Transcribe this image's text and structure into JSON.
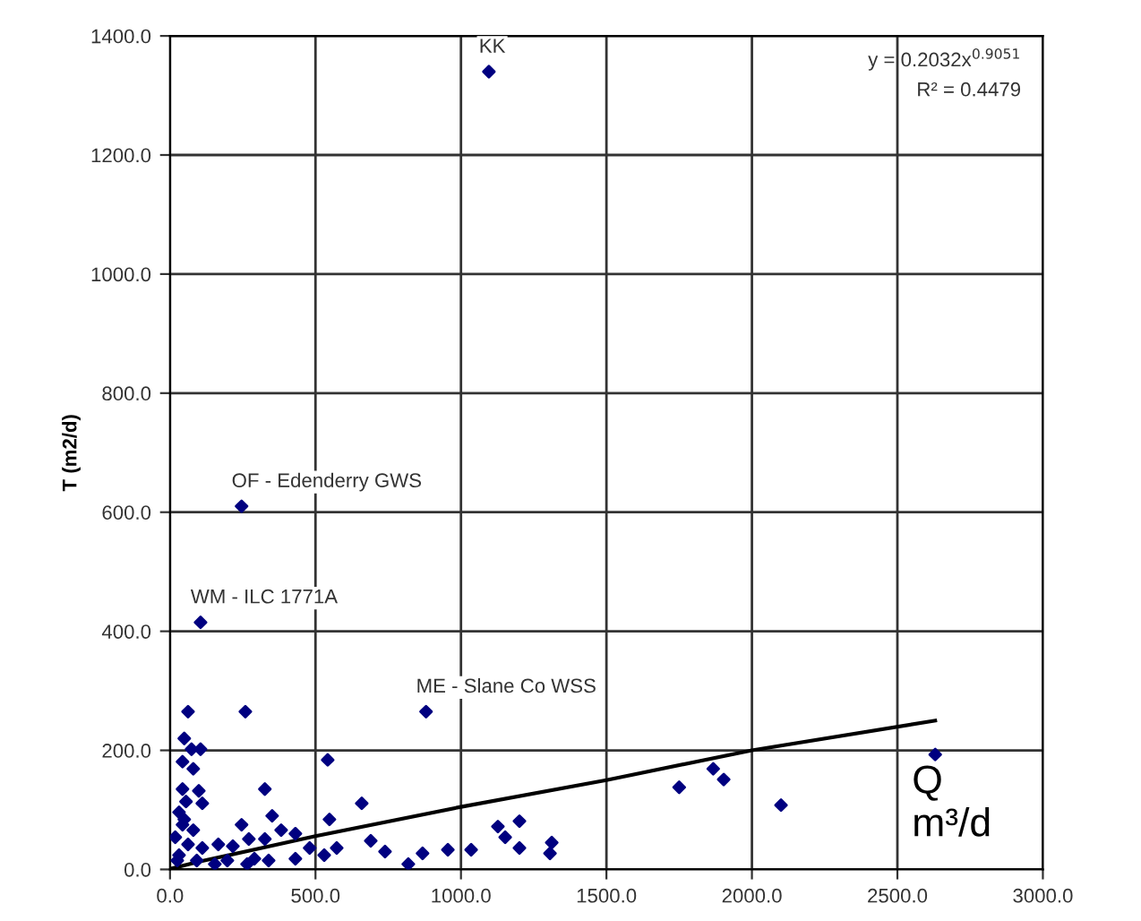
{
  "chart_data": {
    "type": "scatter",
    "xlabel": "Q\nm³/d",
    "ylabel": "T (m2/d)",
    "xlim": [
      0,
      3000
    ],
    "ylim": [
      0,
      1400
    ],
    "xticks": [
      {
        "value": 0,
        "label": "0.0"
      },
      {
        "value": 500,
        "label": "500.0"
      },
      {
        "value": 1000,
        "label": "1000.0"
      },
      {
        "value": 1500,
        "label": "1500.0"
      },
      {
        "value": 2000,
        "label": "2000.0"
      },
      {
        "value": 2500,
        "label": "2500.0"
      },
      {
        "value": 3000,
        "label": "3000.0"
      }
    ],
    "yticks": [
      {
        "value": 0,
        "label": "0.0"
      },
      {
        "value": 200,
        "label": "200.0"
      },
      {
        "value": 400,
        "label": "400.0"
      },
      {
        "value": 600,
        "label": "600.0"
      },
      {
        "value": 800,
        "label": "800.0"
      },
      {
        "value": 1000,
        "label": "1000.0"
      },
      {
        "value": 1200,
        "label": "1200.0"
      },
      {
        "value": 1400,
        "label": "1400.0"
      }
    ],
    "grid": true,
    "marker": "diamond",
    "series": [
      {
        "color": "#000080",
        "x": [
          1096,
          246,
          105,
          880,
          2630,
          1750,
          1867,
          1903,
          2100,
          62,
          259,
          49,
          105,
          74,
          43,
          80,
          43,
          99,
          111,
          326,
          542,
          659,
          351,
          246,
          271,
          382,
          326,
          166,
          216,
          431,
          548,
          573,
          530,
          480,
          431,
          339,
          690,
          739,
          819,
          868,
          955,
          1035,
          1127,
          1152,
          1201,
          1201,
          1312,
          1306,
          80,
          31,
          43,
          111,
          92,
          154,
          31,
          62,
          197,
          265,
          290,
          25,
          18,
          55,
          49
        ],
        "values": [
          1340,
          610,
          415,
          265,
          193,
          138,
          169,
          151,
          108,
          265,
          265,
          220,
          202,
          202,
          181,
          169,
          135,
          132,
          111,
          135,
          184,
          111,
          90,
          75,
          51,
          66,
          51,
          42,
          39,
          60,
          84,
          36,
          24,
          36,
          18,
          15,
          48,
          30,
          9,
          27,
          33,
          33,
          72,
          54,
          81,
          36,
          45,
          27,
          66,
          96,
          75,
          36,
          15,
          9,
          24,
          42,
          15,
          9,
          18,
          15,
          54,
          114,
          84
        ]
      },
      {
        "type": "line",
        "color": "#000000",
        "marker": "none",
        "x": [
          10,
          100,
          500,
          1000,
          1500,
          2000,
          2630
        ],
        "values": [
          2,
          13,
          56,
          105,
          150,
          200,
          250
        ]
      }
    ],
    "annotations": [
      {
        "text": "KK",
        "x": 1096,
        "y": 1340
      },
      {
        "text": "OF - Edenderry GWS",
        "x": 246,
        "y": 610
      },
      {
        "text": "WM - ILC 1771A",
        "x": 105,
        "y": 415
      },
      {
        "text": "ME - Slane Co WSS",
        "x": 880,
        "y": 265
      },
      "y = 0.2032x$^{0.9051}$",
      "R² = 0.4479"
    ]
  }
}
